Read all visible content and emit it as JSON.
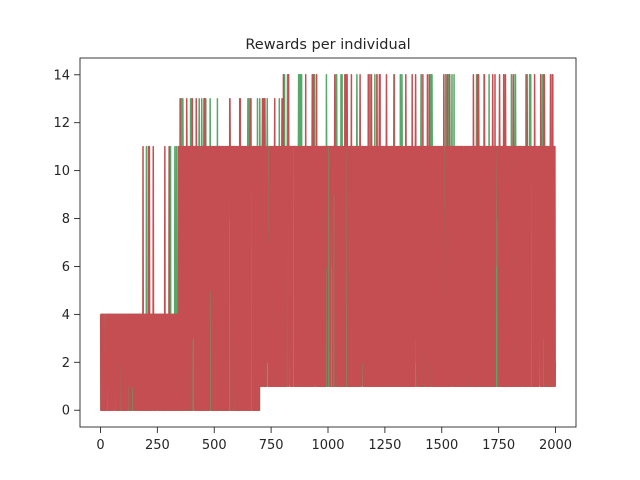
{
  "chart_data": {
    "type": "line",
    "title": "Rewards per individual",
    "xlabel": "",
    "ylabel": "",
    "xlim": [
      -90,
      2090
    ],
    "ylim": [
      -0.7,
      14.7
    ],
    "xticks": [
      0,
      250,
      500,
      750,
      1000,
      1250,
      1500,
      1750,
      2000
    ],
    "xtick_labels": [
      "0",
      "250",
      "500",
      "750",
      "1000",
      "1250",
      "1500",
      "1750",
      "2000"
    ],
    "yticks": [
      0,
      2,
      4,
      6,
      8,
      10,
      12,
      14
    ],
    "ytick_labels": [
      "0",
      "2",
      "4",
      "6",
      "8",
      "10",
      "12",
      "14"
    ],
    "grid": false,
    "legend": "none",
    "n_points": 2000,
    "series": [
      {
        "color": "#55a868",
        "segments": [
          {
            "x_range": [
              0,
              180
            ],
            "typical_range": [
              0,
              4
            ],
            "max": 4
          },
          {
            "x_range": [
              180,
              340
            ],
            "typical_range": [
              0,
              4
            ],
            "max": 11
          },
          {
            "x_range": [
              340,
              700
            ],
            "typical_range": [
              0,
              11
            ],
            "max": 13
          },
          {
            "x_range": [
              700,
              800
            ],
            "typical_range": [
              1,
              11
            ],
            "max": 13
          },
          {
            "x_range": [
              800,
              2000
            ],
            "typical_range": [
              1,
              11
            ],
            "max": 14
          }
        ]
      },
      {
        "color": "#c44e52",
        "segments": [
          {
            "x_range": [
              0,
              170
            ],
            "typical_range": [
              0,
              4
            ],
            "max": 4
          },
          {
            "x_range": [
              170,
              340
            ],
            "typical_range": [
              0,
              4
            ],
            "max": 11
          },
          {
            "x_range": [
              340,
              700
            ],
            "typical_range": [
              0,
              11
            ],
            "max": 13
          },
          {
            "x_range": [
              700,
              800
            ],
            "typical_range": [
              1,
              11
            ],
            "max": 13
          },
          {
            "x_range": [
              800,
              2000
            ],
            "typical_range": [
              1,
              11
            ],
            "max": 14
          }
        ]
      }
    ]
  }
}
